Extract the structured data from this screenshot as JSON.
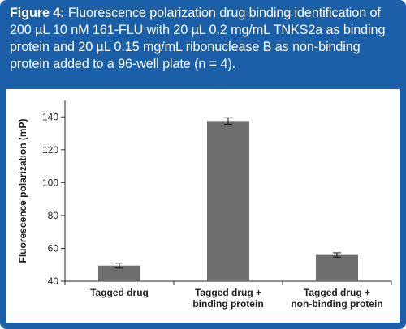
{
  "caption": {
    "label": "Figure 4:",
    "text": " Fluorescence polarization drug binding identification of 200 µL 10 nM 161-FLU with 20 µL 0.2 mg/mL TNKS2a as binding protein and 20 µL 0.15 mg/mL ribonuclease B as non-binding protein added to a 96-well plate (n = 4)."
  },
  "chart_data": {
    "type": "bar",
    "categories": [
      [
        "Tagged drug"
      ],
      [
        "Tagged drug +",
        "binding protein"
      ],
      [
        "Tagged drug +",
        "non-binding protein"
      ]
    ],
    "values": [
      49.5,
      137.5,
      56
    ],
    "errors": [
      1.5,
      2,
      1.3
    ],
    "title": "",
    "xlabel": "",
    "ylabel": "Fluorescence polarization (mP)",
    "ylim": [
      40,
      150
    ],
    "yticks": [
      40,
      60,
      80,
      100,
      120,
      140
    ],
    "grid": false,
    "bar_color": "#6e6e6e"
  }
}
